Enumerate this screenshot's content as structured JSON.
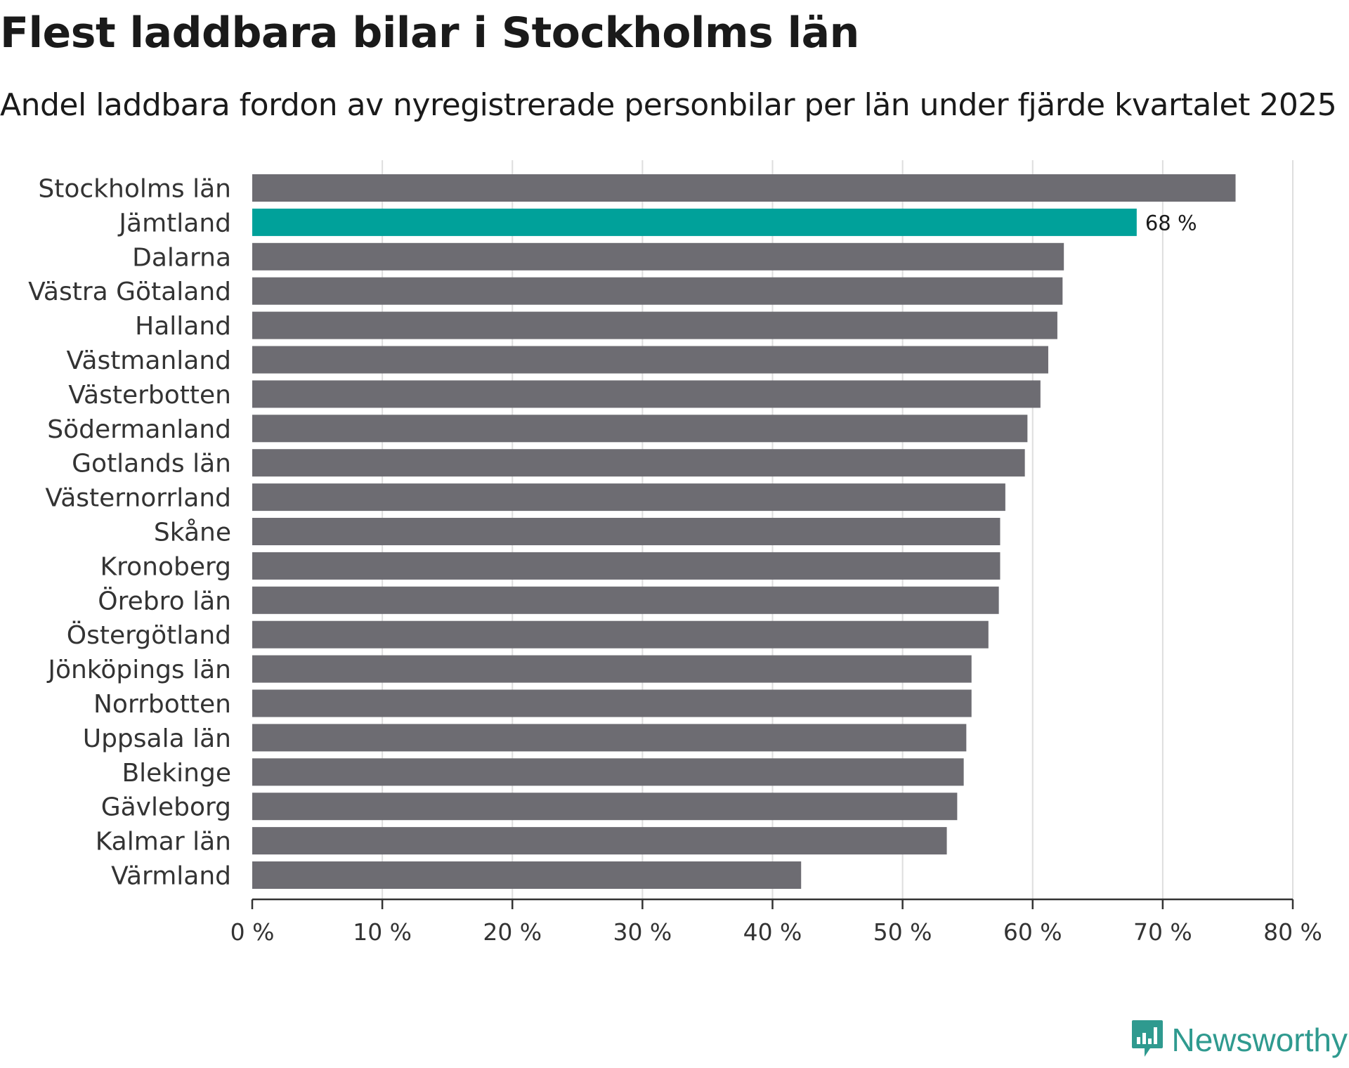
{
  "title": "Flest laddbara bilar i Stockholms län",
  "subtitle": "Andel laddbara fordon av nyregistrerade personbilar per län under fjärde kvartalet 2025",
  "brand": "Newsworthy",
  "colors": {
    "bar": "#6d6c72",
    "highlight": "#00a19a",
    "grid": "#dedede",
    "axis": "#333333",
    "brand": "#2f9a8f"
  },
  "chart_data": {
    "type": "bar",
    "orientation": "horizontal",
    "title": "Flest laddbara bilar i Stockholms län",
    "subtitle": "Andel laddbara fordon av nyregistrerade personbilar per län under fjärde kvartalet 2025",
    "xlabel": "",
    "ylabel": "",
    "xlim": [
      0,
      80
    ],
    "xticks": [
      0,
      10,
      20,
      30,
      40,
      50,
      60,
      70,
      80
    ],
    "tick_format": "{v} %",
    "grid": true,
    "highlight": "Jämtland",
    "highlight_label": "68 %",
    "categories": [
      "Stockholms län",
      "Jämtland",
      "Dalarna",
      "Västra Götaland",
      "Halland",
      "Västmanland",
      "Västerbotten",
      "Södermanland",
      "Gotlands län",
      "Västernorrland",
      "Skåne",
      "Kronoberg",
      "Örebro län",
      "Östergötland",
      "Jönköpings län",
      "Norrbotten",
      "Uppsala län",
      "Blekinge",
      "Gävleborg",
      "Kalmar län",
      "Värmland"
    ],
    "values": [
      75.6,
      68.0,
      62.4,
      62.3,
      61.9,
      61.2,
      60.6,
      59.6,
      59.4,
      57.9,
      57.5,
      57.5,
      57.4,
      56.6,
      55.3,
      55.3,
      54.9,
      54.7,
      54.2,
      53.4,
      42.2
    ]
  }
}
